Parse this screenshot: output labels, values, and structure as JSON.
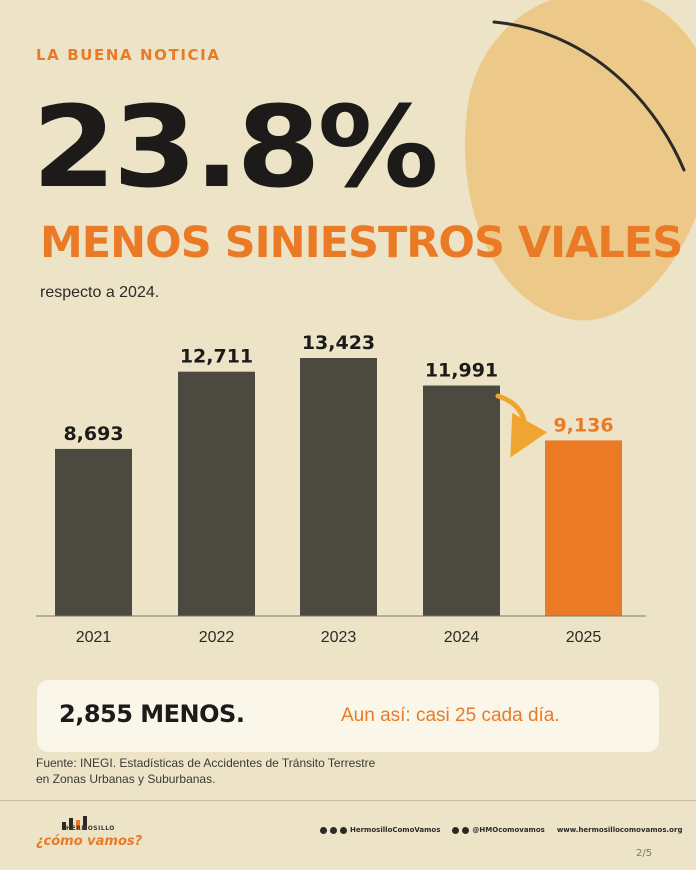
{
  "header": {
    "eyebrow": "LA BUENA NOTICIA",
    "big_number": "23.8%",
    "headline": "MENOS SINIESTROS VIALES",
    "subhead": "respecto a 2024."
  },
  "colors": {
    "background": "#ede4c8",
    "bar_dark": "#4c4940",
    "bar_highlight": "#ea7a25",
    "blob": "#edc989",
    "text_dark": "#1c1b19"
  },
  "chart_data": {
    "type": "bar",
    "categories": [
      "2021",
      "2022",
      "2023",
      "2024",
      "2025"
    ],
    "values": [
      8693,
      12711,
      13423,
      11991,
      9136
    ],
    "value_labels": [
      "8,693",
      "12,711",
      "13,423",
      "11,991",
      "9,136"
    ],
    "highlight_index": 4,
    "ylim": [
      0,
      13423
    ],
    "grid": false,
    "legend": "none",
    "annotation": "arrow from 2024 to 2025"
  },
  "callout": {
    "left": "2,855 MENOS.",
    "right": "Aun así: casi 25 cada día."
  },
  "source": {
    "line1": "Fuente: INEGI. Estadísticas de Accidentes de Tránsito Terrestre",
    "line2": "en Zonas Urbanas y Suburbanas."
  },
  "footer": {
    "logo_small": "HERMOSILLO",
    "logo_main": "¿cómo vamos?",
    "social_facebook_icon": "facebook-icon",
    "handle1": "HermosilloComoVamos",
    "handle2": "@HMOcomovamos",
    "website": "www.hermosillocomovamos.org",
    "page": "2/5"
  }
}
